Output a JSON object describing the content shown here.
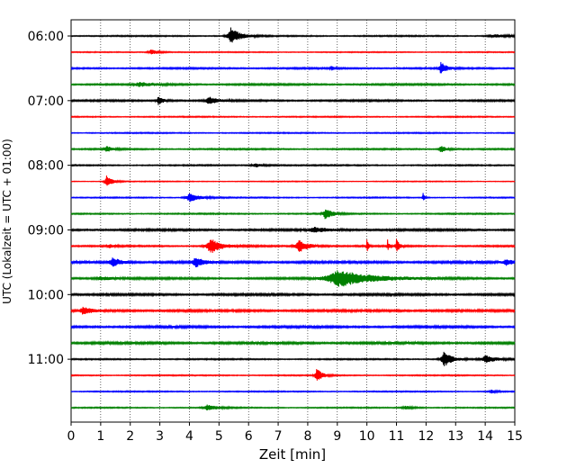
{
  "chart_data": {
    "type": "line",
    "xlabel": "Zeit  [min]",
    "ylabel": "UTC (Lokalzeit = UTC + 01:00)",
    "xlim": [
      0,
      15
    ],
    "x_ticks": [
      0,
      1,
      2,
      3,
      4,
      5,
      6,
      7,
      8,
      9,
      10,
      11,
      12,
      13,
      14,
      15
    ],
    "x_tick_labels": [
      "0",
      "1",
      "2",
      "3",
      "4",
      "5",
      "6",
      "7",
      "8",
      "9",
      "10",
      "11",
      "12",
      "13",
      "14",
      "15"
    ],
    "y_tick_labels": [
      "06:00",
      "07:00",
      "08:00",
      "09:00",
      "10:00",
      "11:00"
    ],
    "trace_interval_minutes": 15,
    "grid": {
      "x": true,
      "y": false,
      "style": "dotted"
    },
    "color_cycle": [
      "#000000",
      "#ff0000",
      "#0000ff",
      "#008000"
    ],
    "traces": [
      {
        "start": "06:00",
        "color": "#000000",
        "noise": 0.45,
        "events": [
          {
            "t": 5.4,
            "amp": 9,
            "dur": 0.35
          },
          {
            "t": 14.3,
            "amp": 1.5,
            "dur": 0.6
          }
        ]
      },
      {
        "start": "06:15",
        "color": "#ff0000",
        "noise": 0.35,
        "events": [
          {
            "t": 2.7,
            "amp": 3,
            "dur": 0.3
          }
        ]
      },
      {
        "start": "06:30",
        "color": "#0000ff",
        "noise": 0.55,
        "events": [
          {
            "t": 12.5,
            "amp": 7,
            "dur": 0.2
          },
          {
            "t": 8.8,
            "amp": 2,
            "dur": 0.1
          }
        ]
      },
      {
        "start": "06:45",
        "color": "#008000",
        "noise": 0.6,
        "events": [
          {
            "t": 2.3,
            "amp": 2,
            "dur": 0.6
          }
        ]
      },
      {
        "start": "07:00",
        "color": "#000000",
        "noise": 0.6,
        "events": [
          {
            "t": 2.95,
            "amp": 5,
            "dur": 0.2
          },
          {
            "t": 4.65,
            "amp": 4,
            "dur": 0.3
          }
        ]
      },
      {
        "start": "07:15",
        "color": "#ff0000",
        "noise": 0.4,
        "events": []
      },
      {
        "start": "07:30",
        "color": "#0000ff",
        "noise": 0.4,
        "events": []
      },
      {
        "start": "07:45",
        "color": "#008000",
        "noise": 0.5,
        "events": [
          {
            "t": 1.2,
            "amp": 3,
            "dur": 0.25
          },
          {
            "t": 12.5,
            "amp": 4,
            "dur": 0.2
          }
        ]
      },
      {
        "start": "08:00",
        "color": "#000000",
        "noise": 0.45,
        "events": [
          {
            "t": 6.2,
            "amp": 2,
            "dur": 0.4
          }
        ]
      },
      {
        "start": "08:15",
        "color": "#ff0000",
        "noise": 0.3,
        "events": [
          {
            "t": 1.2,
            "amp": 7,
            "dur": 0.2
          }
        ]
      },
      {
        "start": "08:30",
        "color": "#0000ff",
        "noise": 0.4,
        "events": [
          {
            "t": 4.0,
            "amp": 5,
            "dur": 0.4
          },
          {
            "t": 11.9,
            "amp": 6,
            "dur": 0.05
          }
        ]
      },
      {
        "start": "08:45",
        "color": "#008000",
        "noise": 0.45,
        "events": [
          {
            "t": 8.6,
            "amp": 7,
            "dur": 0.25
          }
        ]
      },
      {
        "start": "09:00",
        "color": "#000000",
        "noise": 0.7,
        "events": [
          {
            "t": 8.2,
            "amp": 2.5,
            "dur": 0.6
          }
        ]
      },
      {
        "start": "09:15",
        "color": "#ff0000",
        "noise": 0.55,
        "events": [
          {
            "t": 4.7,
            "amp": 9,
            "dur": 0.4
          },
          {
            "t": 7.7,
            "amp": 7,
            "dur": 0.35
          },
          {
            "t": 10.0,
            "amp": 9,
            "dur": 0.05
          },
          {
            "t": 10.7,
            "amp": 8,
            "dur": 0.05
          },
          {
            "t": 11.0,
            "amp": 10,
            "dur": 0.1
          },
          {
            "t": 1.3,
            "amp": 2,
            "dur": 0.2
          }
        ]
      },
      {
        "start": "09:30",
        "color": "#0000ff",
        "noise": 0.8,
        "events": [
          {
            "t": 1.4,
            "amp": 5,
            "dur": 0.3
          },
          {
            "t": 4.2,
            "amp": 6,
            "dur": 0.25
          },
          {
            "t": 14.7,
            "amp": 3,
            "dur": 0.3
          }
        ]
      },
      {
        "start": "09:45",
        "color": "#008000",
        "noise": 0.65,
        "events": [
          {
            "t": 9.0,
            "amp": 10,
            "dur": 1.2
          },
          {
            "t": 1.0,
            "amp": 2,
            "dur": 0.6
          }
        ]
      },
      {
        "start": "10:00",
        "color": "#000000",
        "noise": 0.75,
        "events": []
      },
      {
        "start": "10:15",
        "color": "#ff0000",
        "noise": 0.8,
        "events": [
          {
            "t": 0.4,
            "amp": 4,
            "dur": 0.3
          }
        ]
      },
      {
        "start": "10:30",
        "color": "#0000ff",
        "noise": 0.75,
        "events": []
      },
      {
        "start": "10:45",
        "color": "#008000",
        "noise": 0.8,
        "events": []
      },
      {
        "start": "11:00",
        "color": "#000000",
        "noise": 0.45,
        "events": [
          {
            "t": 12.6,
            "amp": 9,
            "dur": 0.3
          },
          {
            "t": 14.0,
            "amp": 4,
            "dur": 0.4
          }
        ]
      },
      {
        "start": "11:15",
        "color": "#ff0000",
        "noise": 0.4,
        "events": [
          {
            "t": 8.3,
            "amp": 8,
            "dur": 0.2
          }
        ]
      },
      {
        "start": "11:30",
        "color": "#0000ff",
        "noise": 0.4,
        "events": [
          {
            "t": 14.2,
            "amp": 2,
            "dur": 0.2
          }
        ]
      },
      {
        "start": "11:45",
        "color": "#008000",
        "noise": 0.4,
        "events": [
          {
            "t": 4.6,
            "amp": 3,
            "dur": 0.4
          },
          {
            "t": 11.3,
            "amp": 2,
            "dur": 0.3
          }
        ]
      }
    ]
  }
}
